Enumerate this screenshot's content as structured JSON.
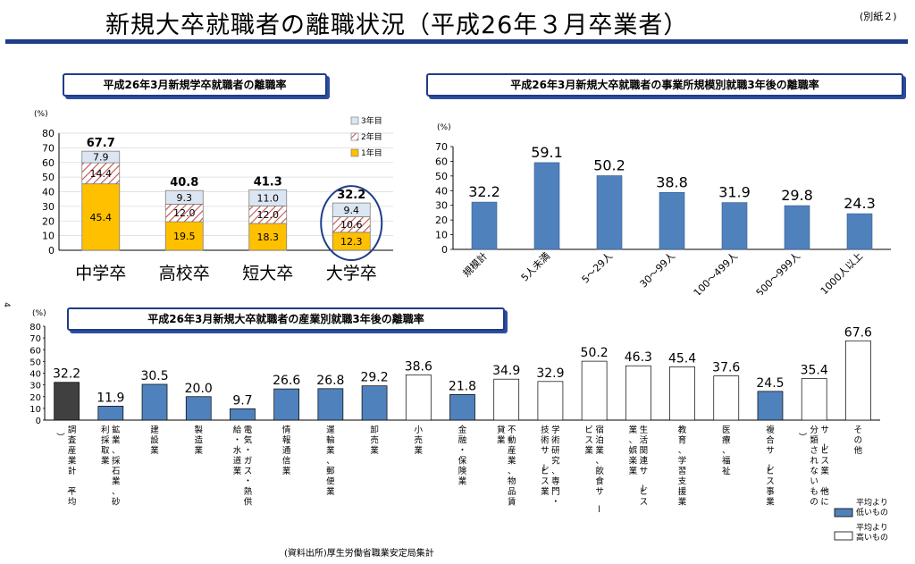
{
  "title": "新規大卒就職者の離職状況（平成26年３月卒業者）",
  "note": "(別紙２)",
  "page_number": "4",
  "source": "(資料出所)厚生労働省職業安定局集計",
  "colors": {
    "rule": "#1f3c88",
    "year1": "#ffc000",
    "year2_hatch": "#c0504d",
    "year3": "#dce6f2",
    "blue_bar": "#4f81bd",
    "dark_bar": "#404040",
    "white_bar": "#ffffff",
    "circle": "#1f3c88"
  },
  "legend": {
    "low": "平均より低いもの",
    "high": "平均より高いもの"
  },
  "chart_data": [
    {
      "type": "bar",
      "stacked": true,
      "title": "平成26年3月新規学卒就職者の離職率",
      "unit": "(%)",
      "ylim": [
        0,
        80
      ],
      "yticks": [
        0,
        10,
        20,
        30,
        40,
        50,
        60,
        70,
        80
      ],
      "categories": [
        "中学卒",
        "高校卒",
        "短大卒",
        "大学卒"
      ],
      "series": [
        {
          "name": "1年目",
          "values": [
            45.4,
            19.5,
            18.3,
            12.3
          ]
        },
        {
          "name": "2年目",
          "values": [
            14.4,
            12.0,
            12.0,
            10.6
          ]
        },
        {
          "name": "3年目",
          "values": [
            7.9,
            9.3,
            11.0,
            9.4
          ]
        }
      ],
      "totals": [
        67.7,
        40.8,
        41.3,
        32.2
      ],
      "highlighted": "大学卒",
      "legend_position": "top-right"
    },
    {
      "type": "bar",
      "title": "平成26年3月新規大卒就職者の事業所規模別就職3年後の離職率",
      "unit": "(%)",
      "ylim": [
        0,
        70
      ],
      "yticks": [
        0,
        10,
        20,
        30,
        40,
        50,
        60,
        70
      ],
      "categories": [
        "規模計",
        "5人未満",
        "5～29人",
        "30～99人",
        "100～499人",
        "500～999人",
        "1000人以上"
      ],
      "values": [
        32.2,
        59.1,
        50.2,
        38.8,
        31.9,
        29.8,
        24.3
      ]
    },
    {
      "type": "bar",
      "title": "平成26年3月新規大卒就職者の産業別就職3年後の離職率",
      "unit": "(%)",
      "ylim": [
        0,
        80
      ],
      "yticks": [
        0,
        10,
        20,
        30,
        40,
        50,
        60,
        70,
        80
      ],
      "categories": [
        "調査産業計（平均）",
        "鉱業、採石業、砂利採取業",
        "建設業",
        "製造業",
        "電気・ガス・熱供給・水道業",
        "情報通信業",
        "運輸業、郵便業",
        "卸売業",
        "小売業",
        "金融・保険業",
        "不動産業、物品賃貸業",
        "学術研究、専門・技術サービス業",
        "宿泊業、飲食サービス業",
        "生活関連サービス業、娯楽業",
        "教育、学習支援業",
        "医療、福祉",
        "複合サービス事業",
        "サービス業（他に分類されないもの）",
        "その他"
      ],
      "values": [
        32.2,
        11.9,
        30.5,
        20.0,
        9.7,
        26.6,
        26.8,
        29.2,
        38.6,
        21.8,
        34.9,
        32.9,
        50.2,
        46.3,
        45.4,
        37.6,
        24.5,
        35.4,
        67.6
      ],
      "bar_class": [
        "average",
        "low",
        "low",
        "low",
        "low",
        "low",
        "low",
        "low",
        "high",
        "low",
        "high",
        "high",
        "high",
        "high",
        "high",
        "high",
        "low",
        "high",
        "high"
      ],
      "legend_position": "bottom-right"
    }
  ]
}
